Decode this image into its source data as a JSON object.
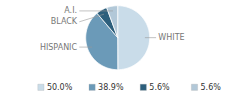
{
  "chart_data": {
    "type": "pie",
    "categories": [
      "WHITE",
      "HISPANIC",
      "BLACK",
      "A.I."
    ],
    "values": [
      50.0,
      38.9,
      5.6,
      5.6
    ],
    "value_labels": [
      "50.0%",
      "38.9%",
      "5.6%",
      "5.6%"
    ],
    "colors": [
      "#c9dce9",
      "#6b9ab8",
      "#2d5f7c",
      "#b2c8d8"
    ],
    "legend": "bottom"
  }
}
